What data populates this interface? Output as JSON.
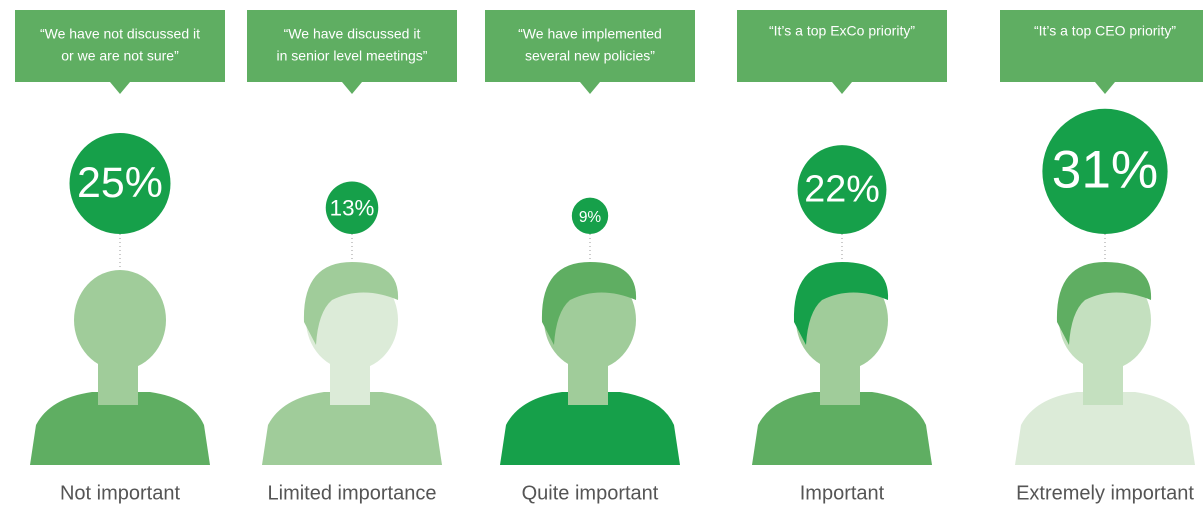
{
  "chart_data": {
    "type": "bubble",
    "quotes": [
      [
        "“We have not discussed it",
        "or we are not sure”"
      ],
      [
        "“We have discussed it",
        "in senior level meetings”"
      ],
      [
        "“We have implemented",
        "several new policies”"
      ],
      [
        "“It’s a top ExCo priority”"
      ],
      [
        "“It’s a top CEO priority”"
      ]
    ],
    "categories": [
      "Not important",
      "Limited importance",
      "Quite important",
      "Important",
      "Extremely important"
    ],
    "values": [
      25,
      13,
      9,
      22,
      31
    ],
    "value_labels": [
      "25%",
      "13%",
      "9%",
      "22%",
      "31%"
    ],
    "color": "#16a04a",
    "quote_color": "#5fae62"
  }
}
